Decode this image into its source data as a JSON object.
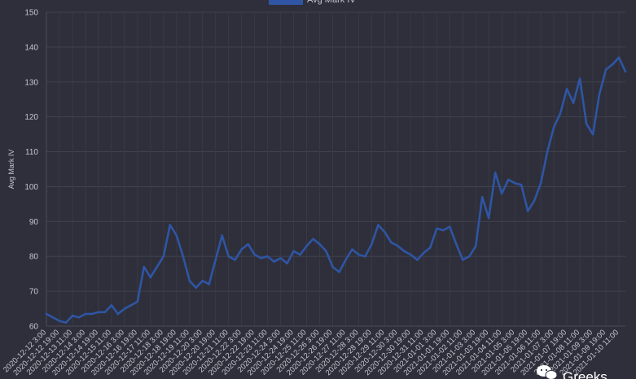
{
  "chart_data": {
    "type": "line",
    "ylabel": "Avg Mark IV",
    "ylim": [
      60,
      150
    ],
    "yticks": [
      60,
      70,
      80,
      90,
      100,
      110,
      120,
      130,
      140,
      150
    ],
    "grid": true,
    "legend": {
      "position": "top-center",
      "entries": [
        "Avg Mark IV"
      ]
    },
    "series": [
      {
        "name": "Avg Mark IV",
        "color": "#2f55a4"
      }
    ],
    "xticks": [
      "2020-12-12 3:00",
      "2020-12-12 19:00",
      "2020-12-13 11:00",
      "2020-12-14 3:00",
      "2020-12-14 19:00",
      "2020-12-15 11:00",
      "2020-12-16 3:00",
      "2020-12-16 19:00",
      "2020-12-17 11:00",
      "2020-12-18 3:00",
      "2020-12-18 19:00",
      "2020-12-19 11:00",
      "2020-12-20 3:00",
      "2020-12-20 19:00",
      "2020-12-21 11:00",
      "2020-12-22 3:00",
      "2020-12-22 19:00",
      "2020-12-23 11:00",
      "2020-12-24 3:00",
      "2020-12-24 19:00",
      "2020-12-25 11:00",
      "2020-12-26 3:00",
      "2020-12-26 19:00",
      "2020-12-27 11:00",
      "2020-12-28 3:00",
      "2020-12-28 19:00",
      "2020-12-29 11:00",
      "2020-12-30 3:00",
      "2020-12-30 19:00",
      "2020-12-31 11:00",
      "2021-01-01 3:00",
      "2021-01-01 19:00",
      "2021-01-02 11:00",
      "2021-01-03 3:00",
      "2021-01-03 19:00",
      "2021-01-04 11:00",
      "2021-01-05 3:00",
      "2021-01-05 19:00",
      "2021-01-06 11:00",
      "2021-01-07 3:00",
      "2021-01-07 19:00",
      "2021-01-08 11:00",
      "2021-01-09 3:00",
      "2021-01-09 19:00",
      "2021-01-10 11:00"
    ],
    "points": [
      [
        "2020-12-12 3:00",
        63.5
      ],
      [
        "2020-12-12 11:00",
        62.5
      ],
      [
        "2020-12-12 19:00",
        61.5
      ],
      [
        "2020-12-13 3:00",
        61.0
      ],
      [
        "2020-12-13 11:00",
        63.0
      ],
      [
        "2020-12-13 19:00",
        62.5
      ],
      [
        "2020-12-14 3:00",
        63.5
      ],
      [
        "2020-12-14 11:00",
        63.5
      ],
      [
        "2020-12-14 19:00",
        64.0
      ],
      [
        "2020-12-15 3:00",
        64.0
      ],
      [
        "2020-12-15 11:00",
        66.0
      ],
      [
        "2020-12-15 19:00",
        63.5
      ],
      [
        "2020-12-16 3:00",
        65.0
      ],
      [
        "2020-12-16 11:00",
        66.0
      ],
      [
        "2020-12-16 19:00",
        67.0
      ],
      [
        "2020-12-17 3:00",
        77.0
      ],
      [
        "2020-12-17 11:00",
        74.0
      ],
      [
        "2020-12-17 19:00",
        77.0
      ],
      [
        "2020-12-18 3:00",
        80.0
      ],
      [
        "2020-12-18 11:00",
        89.0
      ],
      [
        "2020-12-18 19:00",
        86.0
      ],
      [
        "2020-12-19 3:00",
        80.0
      ],
      [
        "2020-12-19 11:00",
        73.0
      ],
      [
        "2020-12-19 19:00",
        71.0
      ],
      [
        "2020-12-20 3:00",
        73.0
      ],
      [
        "2020-12-20 11:00",
        72.0
      ],
      [
        "2020-12-20 19:00",
        79.0
      ],
      [
        "2020-12-21 3:00",
        86.0
      ],
      [
        "2020-12-21 11:00",
        80.0
      ],
      [
        "2020-12-21 19:00",
        79.0
      ],
      [
        "2020-12-22 3:00",
        82.0
      ],
      [
        "2020-12-22 11:00",
        83.5
      ],
      [
        "2020-12-22 19:00",
        80.5
      ],
      [
        "2020-12-23 3:00",
        79.5
      ],
      [
        "2020-12-23 11:00",
        80.0
      ],
      [
        "2020-12-23 19:00",
        78.5
      ],
      [
        "2020-12-24 3:00",
        79.5
      ],
      [
        "2020-12-24 11:00",
        78.0
      ],
      [
        "2020-12-24 19:00",
        81.5
      ],
      [
        "2020-12-25 3:00",
        80.5
      ],
      [
        "2020-12-25 11:00",
        83.0
      ],
      [
        "2020-12-25 19:00",
        85.0
      ],
      [
        "2020-12-26 3:00",
        83.5
      ],
      [
        "2020-12-26 11:00",
        81.5
      ],
      [
        "2020-12-26 19:00",
        77.0
      ],
      [
        "2020-12-27 3:00",
        75.5
      ],
      [
        "2020-12-27 11:00",
        79.0
      ],
      [
        "2020-12-27 19:00",
        82.0
      ],
      [
        "2020-12-28 3:00",
        80.5
      ],
      [
        "2020-12-28 11:00",
        80.0
      ],
      [
        "2020-12-28 19:00",
        83.5
      ],
      [
        "2020-12-29 3:00",
        89.0
      ],
      [
        "2020-12-29 11:00",
        87.0
      ],
      [
        "2020-12-29 19:00",
        84.0
      ],
      [
        "2020-12-30 3:00",
        83.0
      ],
      [
        "2020-12-30 11:00",
        81.5
      ],
      [
        "2020-12-30 19:00",
        80.5
      ],
      [
        "2020-12-31 3:00",
        79.0
      ],
      [
        "2020-12-31 11:00",
        81.0
      ],
      [
        "2020-12-31 19:00",
        82.5
      ],
      [
        "2021-01-01 3:00",
        88.0
      ],
      [
        "2021-01-01 11:00",
        87.5
      ],
      [
        "2021-01-01 19:00",
        88.5
      ],
      [
        "2021-01-02 3:00",
        83.5
      ],
      [
        "2021-01-02 11:00",
        79.0
      ],
      [
        "2021-01-02 19:00",
        80.0
      ],
      [
        "2021-01-03 3:00",
        83.0
      ],
      [
        "2021-01-03 11:00",
        97.0
      ],
      [
        "2021-01-03 19:00",
        91.0
      ],
      [
        "2021-01-04 3:00",
        104.0
      ],
      [
        "2021-01-04 11:00",
        98.0
      ],
      [
        "2021-01-04 19:00",
        102.0
      ],
      [
        "2021-01-05 3:00",
        101.0
      ],
      [
        "2021-01-05 11:00",
        100.5
      ],
      [
        "2021-01-05 19:00",
        93.0
      ],
      [
        "2021-01-06 3:00",
        96.0
      ],
      [
        "2021-01-06 11:00",
        101.0
      ],
      [
        "2021-01-06 19:00",
        110.0
      ],
      [
        "2021-01-07 3:00",
        117.0
      ],
      [
        "2021-01-07 11:00",
        121.0
      ],
      [
        "2021-01-07 19:00",
        128.0
      ],
      [
        "2021-01-08 3:00",
        124.0
      ],
      [
        "2021-01-08 11:00",
        131.0
      ],
      [
        "2021-01-08 19:00",
        118.0
      ],
      [
        "2021-01-09 3:00",
        115.0
      ],
      [
        "2021-01-09 11:00",
        126.5
      ],
      [
        "2021-01-09 19:00",
        133.5
      ],
      [
        "2021-01-10 3:00",
        135.0
      ],
      [
        "2021-01-10 11:00",
        137.0
      ],
      [
        "2021-01-10 19:00",
        133.0
      ]
    ]
  },
  "watermark": {
    "text": "Greeks",
    "icon": "wechat-icon"
  }
}
